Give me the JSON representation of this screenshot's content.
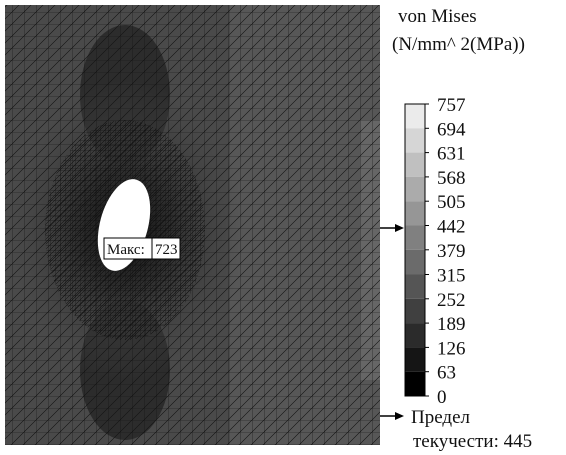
{
  "legend": {
    "title": "von Mises",
    "unit": "(N/mm^ 2(MPa))",
    "ticks": [
      757,
      694,
      631,
      568,
      505,
      442,
      379,
      315,
      252,
      189,
      126,
      63,
      0
    ]
  },
  "max_marker": {
    "label": "Макс:",
    "value": 723
  },
  "yield_marker": {
    "line1": "Предел",
    "line2": "текучести:",
    "value": 445
  }
}
